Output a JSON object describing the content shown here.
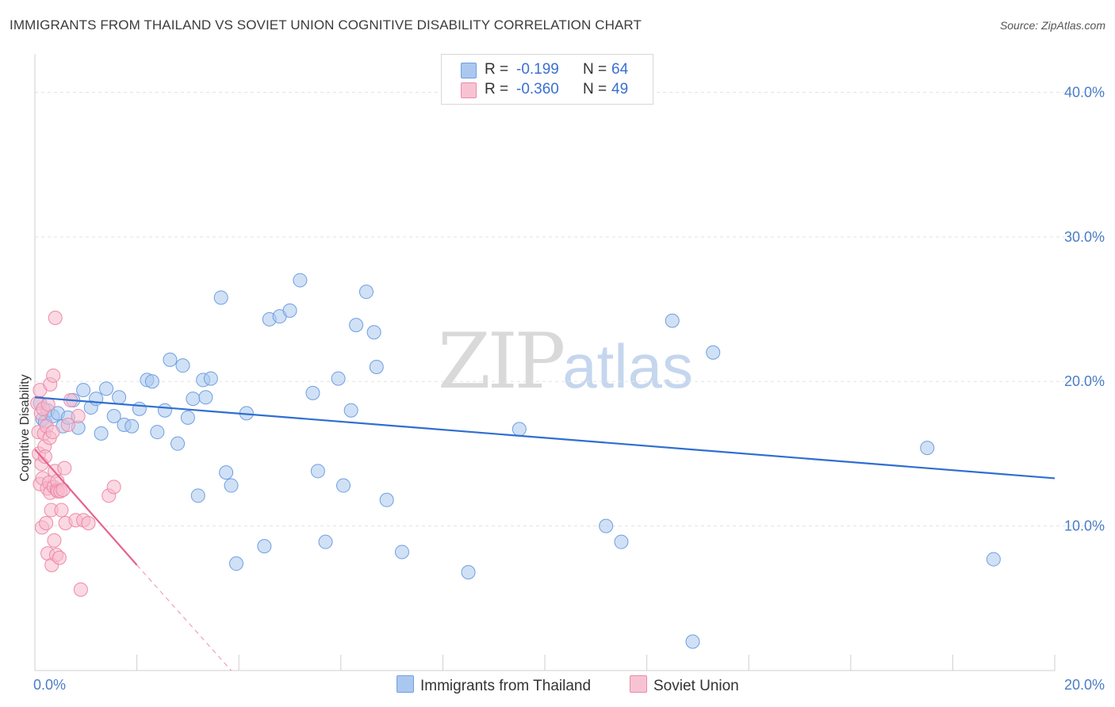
{
  "header": {
    "title": "IMMIGRANTS FROM THAILAND VS SOVIET UNION COGNITIVE DISABILITY CORRELATION CHART",
    "source": "Source: ZipAtlas.com"
  },
  "watermark": {
    "zip": "ZIP",
    "atlas": "atlas"
  },
  "legend_top": {
    "rows": [
      {
        "r_label": "R =",
        "r_value": "-0.199",
        "n_label": "N =",
        "n_value": "64"
      },
      {
        "r_label": "R =",
        "r_value": "-0.360",
        "n_label": "N =",
        "n_value": "49"
      }
    ]
  },
  "legend_bottom": {
    "series1": "Immigrants from Thailand",
    "series2": "Soviet Union"
  },
  "colors": {
    "blue_fill": "#aac8ef",
    "blue_stroke": "#6f9fe0",
    "blue_line": "#2f6fd0",
    "pink_fill": "#f7b9cc",
    "pink_stroke": "#ec8aab",
    "pink_line": "#e5628e"
  },
  "chart_data": {
    "type": "scatter",
    "title": "IMMIGRANTS FROM THAILAND VS SOVIET UNION COGNITIVE DISABILITY CORRELATION CHART",
    "xlabel": "",
    "ylabel": "Cognitive Disability",
    "xlim": [
      0,
      20
    ],
    "ylim": [
      0,
      42
    ],
    "x_ticks": [
      "0.0%",
      "20.0%"
    ],
    "y_ticks": [
      {
        "value": 10,
        "label": "10.0%"
      },
      {
        "value": 20,
        "label": "20.0%"
      },
      {
        "value": 30,
        "label": "30.0%"
      },
      {
        "value": 40,
        "label": "40.0%"
      }
    ],
    "grid": true,
    "legend_position": "bottom",
    "series": [
      {
        "name": "Immigrants from Thailand",
        "color": "blue",
        "points": [
          [
            0.1,
            18.5
          ],
          [
            0.15,
            17.4
          ],
          [
            0.2,
            17.2
          ],
          [
            0.25,
            18.0
          ],
          [
            0.35,
            17.6
          ],
          [
            0.45,
            17.8
          ],
          [
            0.55,
            16.9
          ],
          [
            0.65,
            17.5
          ],
          [
            0.75,
            18.7
          ],
          [
            0.85,
            16.8
          ],
          [
            0.95,
            19.4
          ],
          [
            1.1,
            18.2
          ],
          [
            1.2,
            18.8
          ],
          [
            1.3,
            16.4
          ],
          [
            1.4,
            19.5
          ],
          [
            1.55,
            17.6
          ],
          [
            1.65,
            18.9
          ],
          [
            1.75,
            17.0
          ],
          [
            1.9,
            16.9
          ],
          [
            2.05,
            18.1
          ],
          [
            2.2,
            20.1
          ],
          [
            2.3,
            20.0
          ],
          [
            2.4,
            16.5
          ],
          [
            2.55,
            18.0
          ],
          [
            2.65,
            21.5
          ],
          [
            2.8,
            15.7
          ],
          [
            2.9,
            21.1
          ],
          [
            3.0,
            17.5
          ],
          [
            3.1,
            18.8
          ],
          [
            3.2,
            12.1
          ],
          [
            3.3,
            20.1
          ],
          [
            3.35,
            18.9
          ],
          [
            3.45,
            20.2
          ],
          [
            3.65,
            25.8
          ],
          [
            3.75,
            13.7
          ],
          [
            3.85,
            12.8
          ],
          [
            3.95,
            7.4
          ],
          [
            4.15,
            17.8
          ],
          [
            4.5,
            8.6
          ],
          [
            4.6,
            24.3
          ],
          [
            4.8,
            24.5
          ],
          [
            5.0,
            24.9
          ],
          [
            5.2,
            27.0
          ],
          [
            5.45,
            19.2
          ],
          [
            5.55,
            13.8
          ],
          [
            5.7,
            8.9
          ],
          [
            5.95,
            20.2
          ],
          [
            6.05,
            12.8
          ],
          [
            6.2,
            18.0
          ],
          [
            6.3,
            23.9
          ],
          [
            6.5,
            26.2
          ],
          [
            6.65,
            23.4
          ],
          [
            6.7,
            21.0
          ],
          [
            6.9,
            11.8
          ],
          [
            7.2,
            8.2
          ],
          [
            8.5,
            6.8
          ],
          [
            9.5,
            16.7
          ],
          [
            11.2,
            10.0
          ],
          [
            11.5,
            8.9
          ],
          [
            12.5,
            24.2
          ],
          [
            12.9,
            2.0
          ],
          [
            13.3,
            22.0
          ],
          [
            17.5,
            15.4
          ],
          [
            18.8,
            7.7
          ]
        ]
      },
      {
        "name": "Soviet Union",
        "color": "pink",
        "points": [
          [
            0.05,
            18.5
          ],
          [
            0.07,
            16.5
          ],
          [
            0.08,
            15.0
          ],
          [
            0.1,
            19.4
          ],
          [
            0.1,
            12.9
          ],
          [
            0.12,
            17.8
          ],
          [
            0.13,
            14.3
          ],
          [
            0.14,
            9.9
          ],
          [
            0.15,
            13.3
          ],
          [
            0.16,
            18.1
          ],
          [
            0.18,
            16.4
          ],
          [
            0.19,
            15.5
          ],
          [
            0.2,
            14.8
          ],
          [
            0.22,
            10.2
          ],
          [
            0.23,
            16.9
          ],
          [
            0.24,
            12.6
          ],
          [
            0.25,
            8.1
          ],
          [
            0.26,
            18.4
          ],
          [
            0.28,
            13.0
          ],
          [
            0.29,
            16.1
          ],
          [
            0.3,
            19.8
          ],
          [
            0.3,
            12.3
          ],
          [
            0.32,
            11.1
          ],
          [
            0.33,
            7.3
          ],
          [
            0.35,
            16.5
          ],
          [
            0.36,
            20.4
          ],
          [
            0.37,
            12.7
          ],
          [
            0.38,
            9.0
          ],
          [
            0.39,
            13.8
          ],
          [
            0.4,
            24.4
          ],
          [
            0.42,
            8.0
          ],
          [
            0.43,
            12.5
          ],
          [
            0.44,
            13.1
          ],
          [
            0.45,
            12.4
          ],
          [
            0.48,
            7.8
          ],
          [
            0.5,
            12.4
          ],
          [
            0.52,
            11.1
          ],
          [
            0.55,
            12.5
          ],
          [
            0.58,
            14.0
          ],
          [
            0.6,
            10.2
          ],
          [
            0.65,
            17.0
          ],
          [
            0.7,
            18.7
          ],
          [
            0.8,
            10.4
          ],
          [
            0.85,
            17.6
          ],
          [
            0.9,
            5.6
          ],
          [
            0.95,
            10.4
          ],
          [
            1.05,
            10.2
          ],
          [
            1.45,
            12.1
          ],
          [
            1.55,
            12.7
          ]
        ]
      }
    ],
    "trend_lines": [
      {
        "series": "Immigrants from Thailand",
        "x": [
          0,
          20
        ],
        "y": [
          18.9,
          13.3
        ],
        "style": "solid"
      },
      {
        "series": "Soviet Union",
        "x": [
          0,
          2.0
        ],
        "y": [
          15.3,
          7.3
        ],
        "style": "solid"
      },
      {
        "series": "Soviet Union",
        "x": [
          2.0,
          3.85
        ],
        "y": [
          7.3,
          0
        ],
        "style": "dashed"
      }
    ]
  }
}
